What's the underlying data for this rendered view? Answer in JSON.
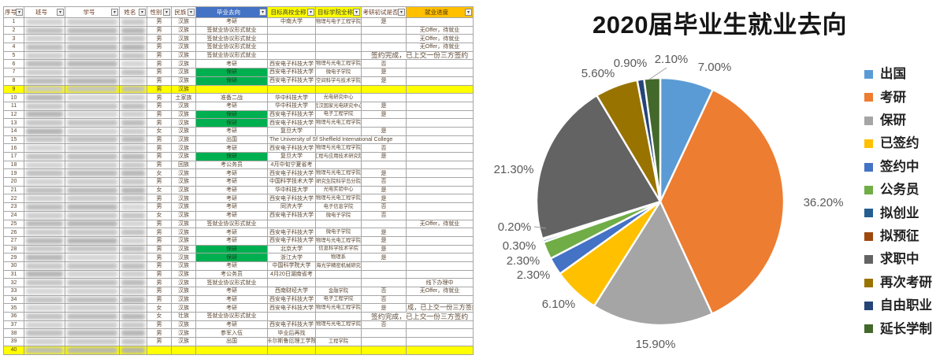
{
  "spreadsheet": {
    "headers": [
      {
        "label": "序号",
        "bg": "white"
      },
      {
        "label": "班号",
        "bg": "white"
      },
      {
        "label": "学号",
        "bg": "white"
      },
      {
        "label": "姓名",
        "bg": "white"
      },
      {
        "label": "性别",
        "bg": "white"
      },
      {
        "label": "民族",
        "bg": "white"
      },
      {
        "label": "毕业去向",
        "bg": "blue"
      },
      {
        "label": "目标高校全称",
        "bg": "yellow"
      },
      {
        "label": "目标学院全称",
        "bg": "yellow"
      },
      {
        "label": "考研初试是否",
        "bg": "white"
      },
      {
        "label": "就业进度",
        "bg": "gold"
      }
    ],
    "rows": [
      {
        "n": "1",
        "g": "男",
        "e": "汉族",
        "d": "考研",
        "u": "中南大学",
        "c": "物理与电子工程学院",
        "x": "是",
        "p": ""
      },
      {
        "n": "2",
        "g": "男",
        "e": "汉族",
        "d": "签就业协议形式就业",
        "u": "",
        "c": "",
        "x": "",
        "p": "无Offer，待就业"
      },
      {
        "n": "3",
        "g": "男",
        "e": "汉族",
        "d": "签就业协议形式就业",
        "u": "",
        "c": "",
        "x": "",
        "p": "无Offer，待就业"
      },
      {
        "n": "4",
        "g": "男",
        "e": "汉族",
        "d": "签就业协议形式就业",
        "u": "",
        "c": "",
        "x": "",
        "p": "无Offer，待就业"
      },
      {
        "n": "5",
        "g": "男",
        "e": "汉族",
        "d": "签就业协议形式就业",
        "u": "",
        "c": "",
        "wide": "签约完成，已上交一份三方签约",
        "wideFrom": "exam"
      },
      {
        "n": "6",
        "g": "男",
        "e": "汉族",
        "d": "考研",
        "u": "西安电子科技大学",
        "c": "物理与光电工程学院",
        "x": "否",
        "p": ""
      },
      {
        "n": "7",
        "g": "男",
        "e": "汉族",
        "d": "保研",
        "dg": true,
        "u": "西安电子科技大学",
        "c": "微电子学院",
        "x": "是",
        "p": ""
      },
      {
        "n": "8",
        "g": "男",
        "e": "汉族",
        "d": "保研",
        "dg": true,
        "u": "西安电子科技大学",
        "c": "空间科学与技术学院",
        "x": "是",
        "p": ""
      },
      {
        "n": "9",
        "g": "男",
        "e": "汉族",
        "d": "",
        "u": "",
        "c": "",
        "x": "",
        "p": "",
        "hl": true
      },
      {
        "n": "10",
        "g": "男",
        "e": "土家族",
        "d": "准备二战",
        "u": "华中科技大学",
        "c": "光电研究中心",
        "x": "",
        "p": ""
      },
      {
        "n": "11",
        "g": "男",
        "e": "汉族",
        "d": "考研",
        "u": "华中科技大学",
        "c": "武汉国家光电研究中心",
        "x": "是",
        "p": ""
      },
      {
        "n": "12",
        "g": "男",
        "e": "汉族",
        "d": "保研",
        "dg": true,
        "u": "西安电子科技大学",
        "c": "电子工程学院",
        "x": "是",
        "p": ""
      },
      {
        "n": "13",
        "g": "男",
        "e": "汉族",
        "d": "保研",
        "dg": true,
        "u": "西安电子科技大学",
        "c": "物理与光电工程学院",
        "x": "",
        "p": ""
      },
      {
        "n": "14",
        "g": "女",
        "e": "汉族",
        "d": "考研",
        "u": "复旦大学",
        "c": "",
        "x": "是",
        "p": ""
      },
      {
        "n": "15",
        "g": "男",
        "e": "汉族",
        "d": "出国",
        "wide": "The University of Sf Sheffield International College",
        "wideFrom": "uni",
        "p": ""
      },
      {
        "n": "16",
        "g": "男",
        "e": "汉族",
        "d": "考研",
        "u": "西安电子科技大学",
        "c": "物理与光电工程学院",
        "x": "否",
        "p": ""
      },
      {
        "n": "17",
        "g": "男",
        "e": "汉族",
        "d": "保研",
        "dg": true,
        "u": "复旦大学",
        "c": "工程与应用技术研究院",
        "x": "是",
        "p": ""
      },
      {
        "n": "18",
        "g": "男",
        "e": "回族",
        "d": "考公务员",
        "u": "4月中旬宁夏省考",
        "c": "",
        "x": "",
        "p": ""
      },
      {
        "n": "19",
        "g": "女",
        "e": "汉族",
        "d": "考研",
        "u": "西安电子科技大学",
        "c": "物理与光电工程学院",
        "x": "是",
        "p": ""
      },
      {
        "n": "20",
        "g": "男",
        "e": "汉族",
        "d": "考研",
        "u": "中国科学技术大学",
        "c": "研究生院科学岛分院",
        "x": "否",
        "p": ""
      },
      {
        "n": "21",
        "g": "女",
        "e": "汉族",
        "d": "考研",
        "u": "华中科技大学",
        "c": "光电实验中心",
        "x": "是",
        "p": ""
      },
      {
        "n": "22",
        "g": "男",
        "e": "汉族",
        "d": "考研",
        "u": "西安电子科技大学",
        "c": "物理与光电工程学院",
        "x": "是",
        "p": ""
      },
      {
        "n": "23",
        "g": "男",
        "e": "汉族",
        "d": "考研",
        "u": "同济大学",
        "c": "电子信息学院",
        "x": "否",
        "p": ""
      },
      {
        "n": "24",
        "g": "女",
        "e": "汉族",
        "d": "考研",
        "u": "西安电子科技大学",
        "c": "微电子学院",
        "x": "否",
        "p": ""
      },
      {
        "n": "25",
        "g": "男",
        "e": "汉族",
        "d": "签就业协议形式就业",
        "u": "",
        "c": "",
        "x": "",
        "p": "无Offer，待就业"
      },
      {
        "n": "26",
        "g": "男",
        "e": "汉族",
        "d": "考研",
        "u": "西安电子科技大学",
        "c": "微电子学院",
        "x": "是",
        "p": ""
      },
      {
        "n": "27",
        "g": "男",
        "e": "汉族",
        "d": "考研",
        "u": "西安电子科技大学",
        "c": "物理与光电工程学院",
        "x": "是",
        "p": ""
      },
      {
        "n": "28",
        "g": "男",
        "e": "汉族",
        "d": "保研",
        "dg": true,
        "u": "北京大学",
        "c": "信息科学技术学院",
        "x": "是",
        "p": ""
      },
      {
        "n": "29",
        "g": "男",
        "e": "汉族",
        "d": "保研",
        "dg": true,
        "u": "浙江大学",
        "c": "物理系",
        "x": "是",
        "p": ""
      },
      {
        "n": "30",
        "g": "男",
        "e": "汉族",
        "d": "考研",
        "u": "中国科学院大学",
        "c": "上海光学精密机械研究所",
        "x": "",
        "p": ""
      },
      {
        "n": "31",
        "g": "男",
        "e": "汉族",
        "d": "考公务员",
        "u": "4月20日湖南省考",
        "c": "",
        "x": "",
        "p": ""
      },
      {
        "n": "32",
        "g": "男",
        "e": "汉族",
        "d": "签就业协议形式就业",
        "u": "",
        "c": "",
        "x": "",
        "p": "线下办理中"
      },
      {
        "n": "33",
        "g": "男",
        "e": "汉族",
        "d": "考研",
        "u": "西南财经大学",
        "c": "金融学院",
        "x": "否",
        "p": "无Offer，待就业"
      },
      {
        "n": "34",
        "g": "男",
        "e": "汉族",
        "d": "考研",
        "u": "西安电子科技大学",
        "c": "电子工程学院",
        "x": "否",
        "p": ""
      },
      {
        "n": "35",
        "g": "女",
        "e": "汉族",
        "d": "考研",
        "u": "西安电子科技大学",
        "c": "物理与光电工程学院",
        "x": "是",
        "p": "成，已上交一份三方签约",
        "pClip": true
      },
      {
        "n": "36",
        "g": "女",
        "e": "壮族",
        "d": "签就业协议形式就业",
        "u": "",
        "c": "",
        "wide": "签约完成，已上交一份三方签约",
        "wideFrom": "exam"
      },
      {
        "n": "37",
        "g": "男",
        "e": "汉族",
        "d": "考研",
        "u": "西安电子科技大学",
        "c": "物理与光电工程学院",
        "x": "否",
        "p": ""
      },
      {
        "n": "38",
        "g": "男",
        "e": "汉族",
        "d": "参军入伍",
        "u": "毕业后再找",
        "c": "",
        "x": "",
        "p": ""
      },
      {
        "n": "39",
        "g": "男",
        "e": "汉族",
        "d": "出国",
        "u": "卡尔斯鲁厄理工学院",
        "c": "工程学院",
        "x": "",
        "p": ""
      },
      {
        "n": "40",
        "g": "",
        "e": "",
        "d": "",
        "u": "",
        "c": "",
        "x": "",
        "p": "",
        "hl": true
      }
    ],
    "highlight_color": "#FFFF00",
    "dest_highlight_color": "#00B050",
    "header_blue": "#4472C4",
    "header_yellow": "#FFFF00",
    "header_gold": "#FFC000"
  },
  "chart_data": {
    "type": "pie",
    "title": "2020届毕业生就业去向",
    "legend_position": "right",
    "slices": [
      {
        "label": "出国",
        "value": 7.0,
        "display": "7.00%",
        "color": "#5B9BD5"
      },
      {
        "label": "考研",
        "value": 36.2,
        "display": "36.20%",
        "color": "#ED7D31"
      },
      {
        "label": "保研",
        "value": 15.9,
        "display": "15.90%",
        "color": "#A5A5A5"
      },
      {
        "label": "已签约",
        "value": 6.1,
        "display": "6.10%",
        "color": "#FFC000"
      },
      {
        "label": "签约中",
        "value": 2.3,
        "display": "2.30%",
        "color": "#4472C4"
      },
      {
        "label": "公务员",
        "value": 2.3,
        "display": "2.30%",
        "color": "#70AD47"
      },
      {
        "label": "拟创业",
        "value": 0.3,
        "display": "0.30%",
        "color": "#255E91"
      },
      {
        "label": "拟预征",
        "value": 0.2,
        "display": "0.20%",
        "color": "#9E480E"
      },
      {
        "label": "求职中",
        "value": 21.3,
        "display": "21.30%",
        "color": "#636363"
      },
      {
        "label": "再次考研",
        "value": 5.6,
        "display": "5.60%",
        "color": "#997300"
      },
      {
        "label": "自由职业",
        "value": 0.9,
        "display": "0.90%",
        "color": "#264478"
      },
      {
        "label": "延长学制",
        "value": 2.1,
        "display": "2.10%",
        "color": "#43682B"
      }
    ]
  }
}
